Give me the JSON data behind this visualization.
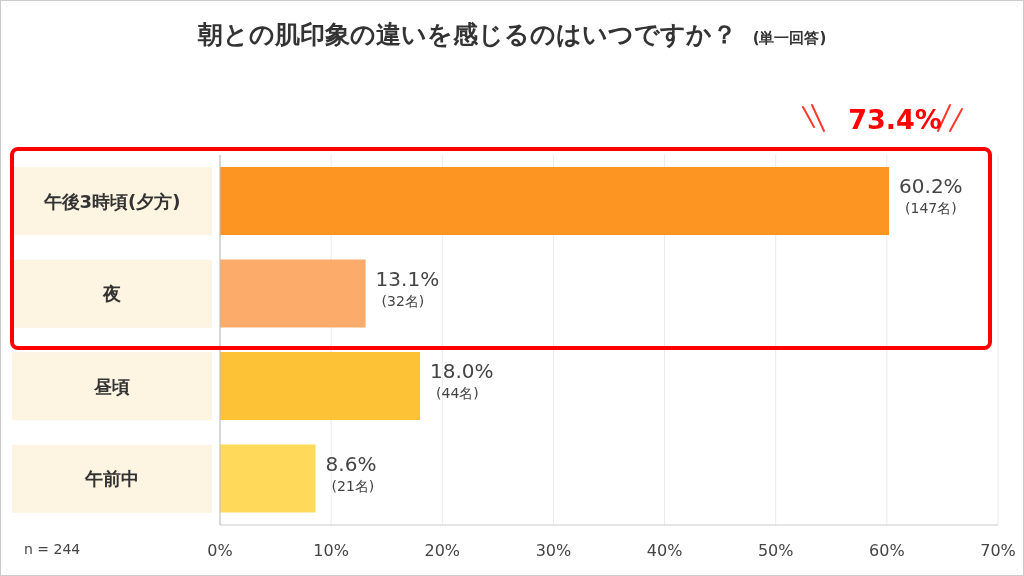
{
  "chart_data": {
    "type": "bar",
    "orientation": "horizontal",
    "title": "朝との肌印象の違いを感じるのはいつですか？",
    "subtitle": "(単一回答)",
    "categories": [
      "午後3時頃(夕方)",
      "夜",
      "昼頃",
      "午前中"
    ],
    "values": [
      60.2,
      13.1,
      18.0,
      8.6
    ],
    "colors": [
      "#fd9522",
      "#fdab6b",
      "#fdc236",
      "#fed95a"
    ],
    "value_labels": [
      "60.2%\n(147名)",
      "13.1%\n(32名)",
      "18.0%\n(44名)",
      "8.6%\n(21名)"
    ],
    "xlim": [
      0,
      70
    ],
    "xticks": [
      {
        "value": 0,
        "label": "0%"
      },
      {
        "value": 10,
        "label": "10%"
      },
      {
        "value": 20,
        "label": "20%"
      },
      {
        "value": 30,
        "label": "30%"
      },
      {
        "value": 40,
        "label": "40%"
      },
      {
        "value": 50,
        "label": "50%"
      },
      {
        "value": 60,
        "label": "60%"
      },
      {
        "value": 70,
        "label": "70%"
      }
    ],
    "grid": "x",
    "legend": false,
    "annotations": [
      "73.4%",
      "n = 244"
    ]
  }
}
